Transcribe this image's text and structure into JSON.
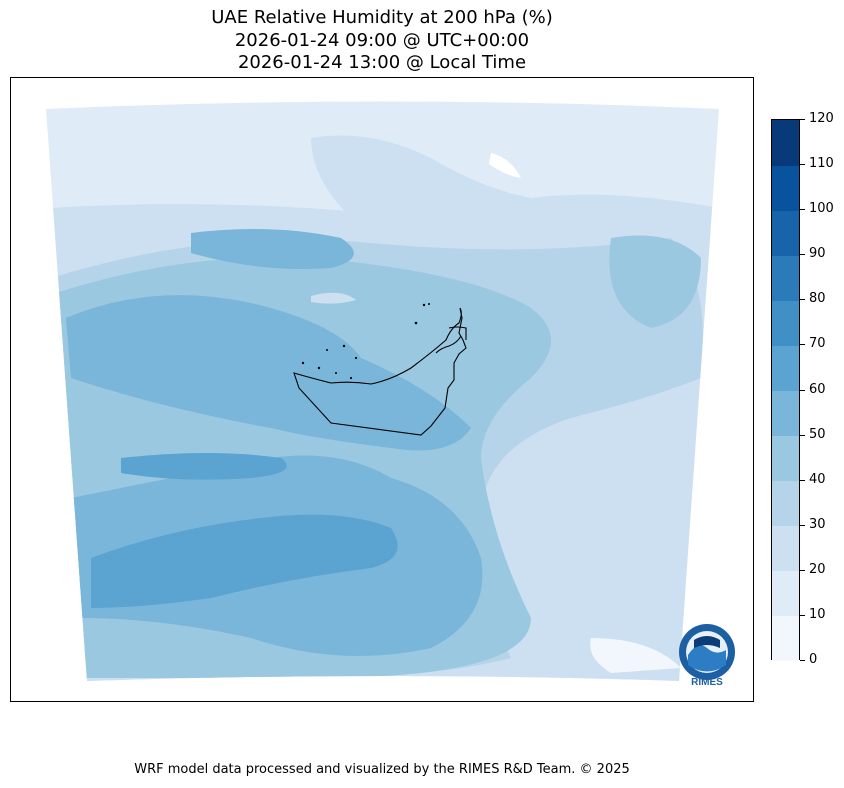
{
  "title": {
    "line1": "UAE Relative Humidity at 200 hPa (%)",
    "line2": "2026-01-24 09:00 @ UTC+00:00",
    "line3": "2026-01-24 13:00 @ Local Time"
  },
  "colorbar": {
    "levels": [
      0,
      10,
      20,
      30,
      40,
      50,
      60,
      70,
      80,
      90,
      100,
      110,
      120
    ],
    "colors": [
      "#f1f7fd",
      "#dfecf7",
      "#cde0f1",
      "#b6d4e9",
      "#9ac8e0",
      "#7ab6d9",
      "#5ba3d0",
      "#4090c5",
      "#2b7bba",
      "#1764ab",
      "#09529d",
      "#083a7a"
    ]
  },
  "logo": {
    "text": "RIMES"
  },
  "footer": "WRF model data processed and visualized by the RIMES R&D Team. © 2025"
}
